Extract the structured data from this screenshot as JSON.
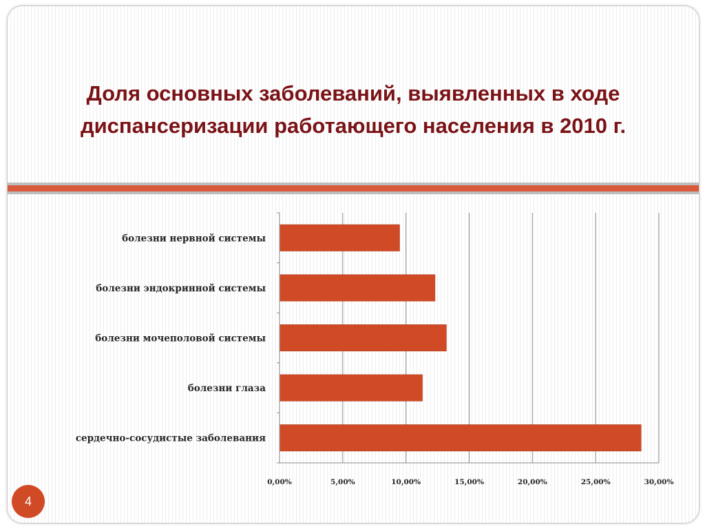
{
  "slide": {
    "title_line1": "Доля основных заболеваний, выявленных в ходе",
    "title_line2": "диспансеризации работающего населения в 2010 г.",
    "page_number": "4"
  },
  "colors": {
    "title": "#7a1216",
    "bar": "#d14a26",
    "accent_red": "#d85a3a",
    "accent_gray": "#bdbdbd"
  },
  "chart_data": {
    "type": "bar",
    "orientation": "horizontal",
    "categories": [
      "болезни нервной системы",
      "болезни эндокринной системы",
      "болезни мочеполовой системы",
      "болезни глаза",
      "сердечно-сосудистые заболевания"
    ],
    "values": [
      9.5,
      12.3,
      13.2,
      11.3,
      28.6
    ],
    "value_unit": "%",
    "xlim": [
      0,
      30
    ],
    "x_ticks": [
      "0,00%",
      "5,00%",
      "10,00%",
      "15,00%",
      "20,00%",
      "25,00%",
      "30,00%"
    ],
    "grid": "vertical",
    "legend": "none"
  }
}
